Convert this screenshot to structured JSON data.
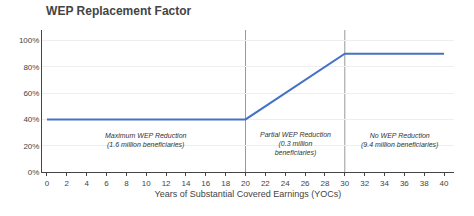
{
  "chart_data": {
    "type": "line",
    "title": "WEP Replacement Factor",
    "xlabel": "Years of Substantial Covered Earnings (YOCs)",
    "x": [
      0,
      20,
      30,
      40
    ],
    "values": [
      0.4,
      0.4,
      0.9,
      0.9
    ],
    "color": "#4472C4",
    "xlim": [
      -0.5,
      41
    ],
    "xticks": [
      0,
      2,
      4,
      6,
      8,
      10,
      12,
      14,
      16,
      18,
      20,
      22,
      24,
      26,
      28,
      30,
      32,
      34,
      36,
      38,
      40
    ],
    "ylim": [
      0,
      1.08
    ],
    "yticks": [
      {
        "value": 0.0,
        "label": "0%"
      },
      {
        "value": 0.2,
        "label": "20%"
      },
      {
        "value": 0.4,
        "label": "40%"
      },
      {
        "value": 0.6,
        "label": "60%"
      },
      {
        "value": 0.8,
        "label": "80%"
      },
      {
        "value": 1.0,
        "label": "100%"
      }
    ],
    "grid": "y",
    "vlines": [
      {
        "x": 20,
        "color": "#999999"
      },
      {
        "x": 30,
        "color": "#999999"
      }
    ],
    "annotations": [
      {
        "text": "Maximum WEP Reduction\n(1.6 million beneficiaries)",
        "x": 10,
        "y": 0.24
      },
      {
        "text": "Partial WEP Reduction\n(0.3 million\nbeneficiaries)",
        "x": 25,
        "y": 0.21
      },
      {
        "text": "No WEP Reduction\n(9.4 million beneficiaries)",
        "x": 35.5,
        "y": 0.24
      }
    ]
  }
}
